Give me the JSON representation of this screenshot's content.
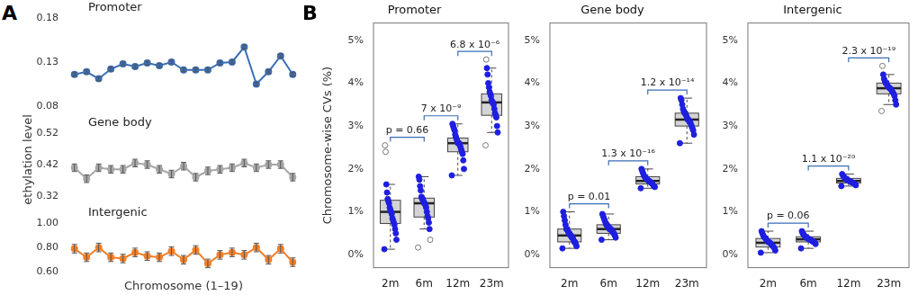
{
  "chart_data": [
    {
      "type": "line",
      "panel_label": "A",
      "title": "Promoter",
      "categories": [
        null,
        null,
        null,
        null,
        null,
        null,
        null,
        null,
        null,
        null,
        null,
        null,
        null,
        null,
        null,
        null,
        null,
        null,
        null
      ],
      "values": [
        0.116,
        0.119,
        0.111,
        0.122,
        0.128,
        0.125,
        0.129,
        0.126,
        0.13,
        0.121,
        0.121,
        0.121,
        0.129,
        0.13,
        0.147,
        0.105,
        0.119,
        0.137,
        0.116
      ],
      "errors": [
        0.002,
        0.002,
        0.002,
        0.002,
        0.002,
        0.002,
        0.002,
        0.002,
        0.002,
        0.002,
        0.002,
        0.002,
        0.002,
        0.002,
        0.002,
        0.002,
        0.002,
        0.002,
        0.002
      ],
      "color": "#3a6db5",
      "marker": "circle",
      "line_style": "solid",
      "ylim": [
        0.08,
        0.18
      ],
      "yticks": [
        0.08,
        0.13,
        0.18
      ],
      "grid": false,
      "tick_labels": "y"
    },
    {
      "type": "line",
      "title": "Gene body",
      "y_label": "Methylation level",
      "categories": [
        null,
        null,
        null,
        null,
        null,
        null,
        null,
        null,
        null,
        null,
        null,
        null,
        null,
        null,
        null,
        null,
        null,
        null,
        null
      ],
      "values": [
        0.41,
        0.375,
        0.41,
        0.405,
        0.405,
        0.425,
        0.42,
        0.405,
        0.39,
        0.415,
        0.38,
        0.4,
        0.405,
        0.41,
        0.425,
        0.41,
        0.42,
        0.42,
        0.38
      ],
      "errors": [
        0.012,
        0.012,
        0.012,
        0.012,
        0.012,
        0.012,
        0.012,
        0.012,
        0.012,
        0.012,
        0.012,
        0.012,
        0.012,
        0.012,
        0.012,
        0.012,
        0.012,
        0.012,
        0.012
      ],
      "color": "#a6a6a6",
      "marker": "circle",
      "line_style": "solid",
      "ylim": [
        0.32,
        0.52
      ],
      "yticks": [
        0.32,
        0.42,
        0.52
      ],
      "grid": false,
      "tick_labels": "y"
    },
    {
      "type": "line",
      "title": "Intergenic",
      "x_label": "Chromosome (1–19)",
      "categories": [
        null,
        null,
        null,
        null,
        null,
        null,
        null,
        null,
        null,
        null,
        null,
        null,
        null,
        null,
        null,
        null,
        null,
        null,
        null
      ],
      "values": [
        0.79,
        0.72,
        0.8,
        0.72,
        0.71,
        0.76,
        0.73,
        0.72,
        0.77,
        0.7,
        0.78,
        0.67,
        0.74,
        0.76,
        0.74,
        0.8,
        0.7,
        0.79,
        0.68
      ],
      "errors": [
        0.035,
        0.035,
        0.035,
        0.035,
        0.035,
        0.035,
        0.035,
        0.035,
        0.035,
        0.035,
        0.035,
        0.035,
        0.035,
        0.035,
        0.035,
        0.035,
        0.035,
        0.035,
        0.035
      ],
      "color": "#f07f2a",
      "marker": "circle",
      "line_style": "solid",
      "ylim": [
        0.6,
        1.0
      ],
      "yticks": [
        {
          "value": 0.6,
          "label": "0.60"
        },
        {
          "value": 0.8,
          "label": "0.80"
        },
        {
          "value": 1.0,
          "label": "1.00"
        }
      ],
      "grid": false,
      "tick_labels": "y"
    },
    {
      "type": "box",
      "panel_label": "B",
      "title": "Promoter",
      "y_label": "Chromosome-wise CVs (%)",
      "categories": [
        "2m",
        "6m",
        "12m",
        "23m"
      ],
      "boxes": [
        {
          "min": 0.13,
          "q1": 0.73,
          "median": 1.0,
          "q3": 1.27,
          "max": 1.64
        },
        {
          "min": 0.6,
          "q1": 0.88,
          "median": 1.2,
          "q3": 1.32,
          "max": 1.82
        },
        {
          "min": 1.85,
          "q1": 2.4,
          "median": 2.6,
          "q3": 2.72,
          "max": 3.05
        },
        {
          "min": 2.85,
          "q1": 3.25,
          "median": 3.55,
          "q3": 3.75,
          "max": 4.35
        }
      ],
      "points": [
        [
          0.13,
          0.35,
          0.5,
          0.6,
          0.7,
          0.75,
          0.8,
          0.85,
          0.95,
          1.0,
          1.05,
          1.1,
          1.2,
          1.25,
          1.3,
          1.45,
          1.64,
          2.4,
          2.55
        ],
        [
          0.17,
          0.35,
          0.6,
          0.75,
          0.85,
          0.9,
          1.0,
          1.1,
          1.15,
          1.2,
          1.2,
          1.25,
          1.3,
          1.3,
          1.35,
          1.5,
          1.6,
          1.75,
          1.82
        ],
        [
          1.85,
          2.0,
          2.2,
          2.35,
          2.4,
          2.45,
          2.5,
          2.55,
          2.6,
          2.6,
          2.6,
          2.65,
          2.7,
          2.75,
          2.8,
          2.9,
          2.95,
          3.0,
          3.05
        ],
        [
          2.55,
          2.85,
          3.0,
          3.2,
          3.25,
          3.3,
          3.4,
          3.5,
          3.55,
          3.55,
          3.6,
          3.7,
          3.75,
          3.8,
          3.9,
          4.0,
          4.2,
          4.35,
          4.55
        ]
      ],
      "color": "#1f1fe0",
      "marker": "circle",
      "ylim": [
        -0.3,
        5.4
      ],
      "yticks": [
        {
          "value": 0,
          "label": "0%"
        },
        {
          "value": 1,
          "label": "1%"
        },
        {
          "value": 2,
          "label": "2%"
        },
        {
          "value": 3,
          "label": "3%"
        },
        {
          "value": 4,
          "label": "4%"
        },
        {
          "value": 5,
          "label": "5%"
        }
      ],
      "grid": false,
      "annotations": [
        {
          "between": [
            "2m",
            "6m"
          ],
          "text": "p = 0.66"
        },
        {
          "between": [
            "6m",
            "12m"
          ],
          "text": "7 x 10⁻⁹"
        },
        {
          "between": [
            "12m",
            "23m"
          ],
          "text": "6.8 x 10⁻⁶"
        }
      ]
    },
    {
      "type": "box",
      "title": "Gene body",
      "categories": [
        "2m",
        "6m",
        "12m",
        "23m"
      ],
      "boxes": [
        {
          "min": 0.15,
          "q1": 0.3,
          "median": 0.45,
          "q3": 0.6,
          "max": 1.0
        },
        {
          "min": 0.35,
          "q1": 0.5,
          "median": 0.6,
          "q3": 0.7,
          "max": 0.95
        },
        {
          "min": 1.55,
          "q1": 1.65,
          "median": 1.72,
          "q3": 1.82,
          "max": 2.0
        },
        {
          "min": 2.6,
          "q1": 3.0,
          "median": 3.15,
          "q3": 3.3,
          "max": 3.65
        }
      ],
      "points": [
        [
          0.15,
          0.2,
          0.25,
          0.3,
          0.3,
          0.35,
          0.4,
          0.4,
          0.45,
          0.45,
          0.5,
          0.5,
          0.55,
          0.6,
          0.6,
          0.7,
          0.8,
          0.9,
          1.0
        ],
        [
          0.35,
          0.4,
          0.45,
          0.5,
          0.5,
          0.55,
          0.55,
          0.6,
          0.6,
          0.6,
          0.65,
          0.65,
          0.7,
          0.7,
          0.75,
          0.8,
          0.85,
          0.9,
          0.95
        ],
        [
          1.55,
          1.58,
          1.6,
          1.62,
          1.65,
          1.67,
          1.68,
          1.7,
          1.72,
          1.72,
          1.74,
          1.76,
          1.78,
          1.8,
          1.82,
          1.85,
          1.9,
          1.95,
          2.0
        ],
        [
          2.6,
          2.8,
          2.9,
          2.95,
          3.0,
          3.05,
          3.1,
          3.1,
          3.15,
          3.15,
          3.2,
          3.25,
          3.3,
          3.3,
          3.35,
          3.4,
          3.5,
          3.6,
          3.65
        ]
      ],
      "color": "#1f1fe0",
      "marker": "circle",
      "ylim": [
        -0.3,
        5.4
      ],
      "yticks": [
        {
          "value": 0,
          "label": "0%"
        },
        {
          "value": 1,
          "label": "1%"
        },
        {
          "value": 2,
          "label": "2%"
        },
        {
          "value": 3,
          "label": "3%"
        },
        {
          "value": 4,
          "label": "4%"
        },
        {
          "value": 5,
          "label": "5%"
        }
      ],
      "grid": false,
      "annotations": [
        {
          "between": [
            "2m",
            "6m"
          ],
          "text": "p = 0.01"
        },
        {
          "between": [
            "6m",
            "12m"
          ],
          "text": "1.3 x 10⁻¹⁶"
        },
        {
          "between": [
            "12m",
            "23m"
          ],
          "text": "1.2 x 10⁻¹⁴"
        }
      ]
    },
    {
      "type": "box",
      "title": "Intergenic",
      "categories": [
        "2m",
        "6m",
        "12m",
        "23m"
      ],
      "boxes": [
        {
          "min": 0.05,
          "q1": 0.18,
          "median": 0.28,
          "q3": 0.38,
          "max": 0.55
        },
        {
          "min": 0.15,
          "q1": 0.3,
          "median": 0.36,
          "q3": 0.42,
          "max": 0.55
        },
        {
          "min": 1.6,
          "q1": 1.67,
          "median": 1.72,
          "q3": 1.78,
          "max": 1.88
        },
        {
          "min": 3.5,
          "q1": 3.75,
          "median": 3.88,
          "q3": 4.0,
          "max": 4.2
        }
      ],
      "points": [
        [
          0.05,
          0.1,
          0.15,
          0.18,
          0.2,
          0.22,
          0.25,
          0.27,
          0.28,
          0.3,
          0.3,
          0.32,
          0.35,
          0.38,
          0.4,
          0.42,
          0.45,
          0.5,
          0.55
        ],
        [
          0.15,
          0.25,
          0.28,
          0.3,
          0.3,
          0.32,
          0.33,
          0.35,
          0.36,
          0.36,
          0.37,
          0.38,
          0.4,
          0.42,
          0.42,
          0.45,
          0.48,
          0.5,
          0.55
        ],
        [
          1.6,
          1.62,
          1.64,
          1.66,
          1.67,
          1.68,
          1.69,
          1.7,
          1.71,
          1.72,
          1.73,
          1.74,
          1.75,
          1.76,
          1.78,
          1.8,
          1.82,
          1.85,
          1.88
        ],
        [
          3.35,
          3.5,
          3.6,
          3.7,
          3.75,
          3.78,
          3.8,
          3.85,
          3.87,
          3.88,
          3.9,
          3.92,
          3.95,
          4.0,
          4.0,
          4.05,
          4.1,
          4.2,
          4.4
        ]
      ],
      "color": "#1f1fe0",
      "marker": "circle",
      "ylim": [
        -0.3,
        5.4
      ],
      "yticks": [
        {
          "value": 0,
          "label": "0%"
        },
        {
          "value": 1,
          "label": "1%"
        },
        {
          "value": 2,
          "label": "2%"
        },
        {
          "value": 3,
          "label": "3%"
        },
        {
          "value": 4,
          "label": "4%"
        },
        {
          "value": 5,
          "label": "5%"
        }
      ],
      "grid": false,
      "annotations": [
        {
          "between": [
            "2m",
            "6m"
          ],
          "text": "p = 0.06"
        },
        {
          "between": [
            "6m",
            "12m"
          ],
          "text": "1.1 x 10⁻²⁰"
        },
        {
          "between": [
            "12m",
            "23m"
          ],
          "text": "2.3 x 10⁻¹⁹"
        }
      ]
    }
  ]
}
